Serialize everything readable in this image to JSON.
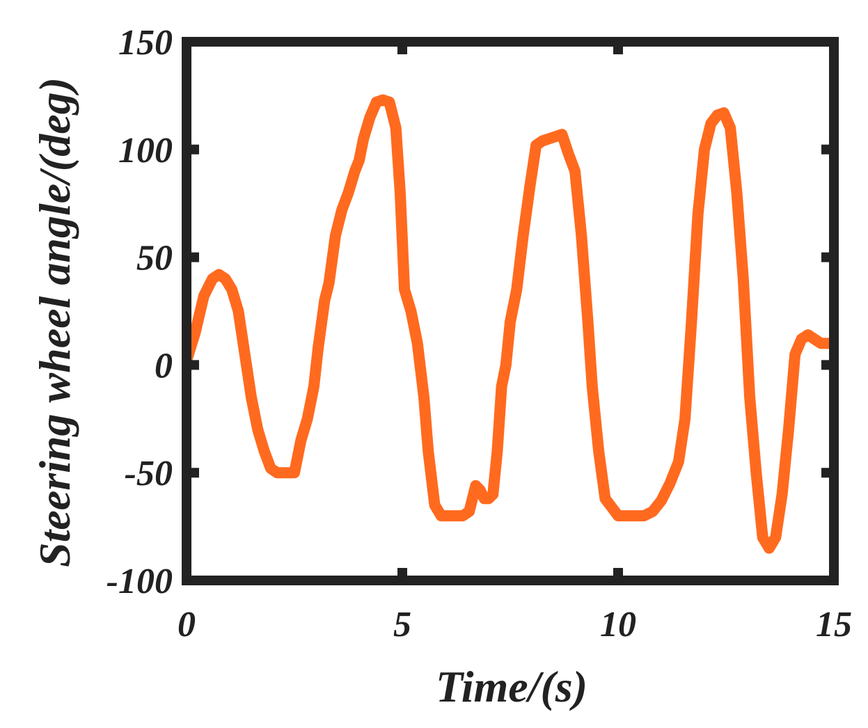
{
  "colors": {
    "line": "#FF6A1F",
    "axes": "#222222",
    "background": "#FFFFFF"
  },
  "chart_data": {
    "type": "line",
    "title": "",
    "xlabel": "Time/(s)",
    "ylabel": "Steering wheel angle/(deg)",
    "xlim": [
      0,
      15
    ],
    "ylim": [
      -100,
      150
    ],
    "xticks": [
      0,
      5,
      10,
      15
    ],
    "yticks": [
      -100,
      -50,
      0,
      50,
      100,
      150
    ],
    "xtick_labels": [
      "0",
      "5",
      "10",
      "15"
    ],
    "ytick_labels": [
      "-100",
      "-50",
      "0",
      "50",
      "100",
      "150"
    ],
    "grid": false,
    "legend": "none",
    "series": [
      {
        "x": [
          0,
          0.2,
          0.4,
          0.6,
          0.75,
          0.9,
          1.05,
          1.2,
          1.35,
          1.5,
          1.65,
          1.8,
          1.95,
          2.1,
          2.2,
          2.35,
          2.5,
          2.65,
          2.8,
          2.95,
          3.05,
          3.2,
          3.3,
          3.45,
          3.6,
          3.75,
          3.9,
          4.0,
          4.1,
          4.25,
          4.4,
          4.55,
          4.7,
          4.85,
          4.95,
          5.05,
          5.2,
          5.35,
          5.5,
          5.6,
          5.75,
          5.9,
          6.05,
          6.2,
          6.4,
          6.55,
          6.7,
          6.8,
          6.9,
          7.0,
          7.1,
          7.2,
          7.3,
          7.4,
          7.5,
          7.65,
          7.8,
          7.95,
          8.1,
          8.25,
          8.4,
          8.55,
          8.7,
          8.85,
          9.0,
          9.15,
          9.3,
          9.4,
          9.55,
          9.7,
          9.85,
          10.0,
          10.15,
          10.3,
          10.45,
          10.6,
          10.8,
          11.0,
          11.2,
          11.4,
          11.55,
          11.7,
          11.85,
          12.0,
          12.15,
          12.3,
          12.45,
          12.6,
          12.75,
          12.9,
          13.05,
          13.2,
          13.35,
          13.5,
          13.65,
          13.8,
          13.95,
          14.1,
          14.25,
          14.4,
          14.55,
          14.7,
          14.85,
          15.0
        ],
        "y": [
          2,
          15,
          32,
          40,
          42,
          40,
          35,
          25,
          5,
          -15,
          -30,
          -40,
          -48,
          -50,
          -50,
          -50,
          -50,
          -35,
          -25,
          -10,
          8,
          30,
          38,
          60,
          72,
          80,
          90,
          95,
          105,
          115,
          122,
          123,
          122,
          110,
          80,
          35,
          25,
          10,
          -15,
          -40,
          -65,
          -70,
          -70,
          -70,
          -70,
          -68,
          -56,
          -58,
          -62,
          -62,
          -60,
          -40,
          -10,
          0,
          20,
          35,
          60,
          82,
          102,
          104,
          105,
          106,
          107,
          98,
          90,
          60,
          20,
          -10,
          -40,
          -62,
          -66,
          -70,
          -70,
          -70,
          -70,
          -70,
          -68,
          -63,
          -55,
          -45,
          -25,
          20,
          70,
          100,
          112,
          116,
          117,
          110,
          80,
          40,
          -15,
          -50,
          -80,
          -85,
          -80,
          -60,
          -30,
          5,
          12,
          14,
          12,
          10,
          10,
          10
        ]
      }
    ]
  }
}
